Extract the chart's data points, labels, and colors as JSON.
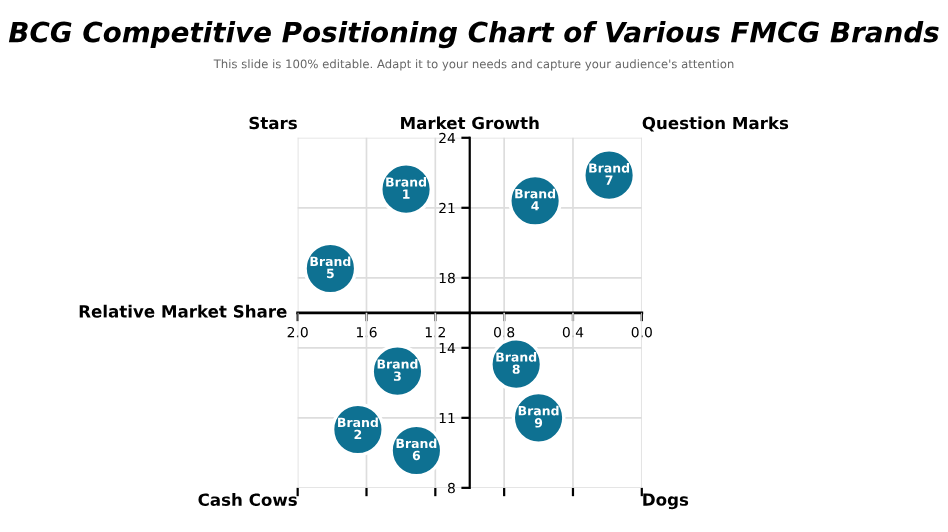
{
  "chart_data": [
    {
      "type": "scatter",
      "title": "BCG Competitive Positioning Chart of Various FMCG Brands",
      "subtitle": "This slide is 100% editable. Adapt it to your needs and capture your audience's attention",
      "xlabel": "Relative Market Share",
      "ylabel": "Market Growth",
      "x": [
        1.37,
        0.62,
        0.19,
        1.81
      ],
      "series": [
        {
          "color": "#0e7192",
          "values": [
            21.8,
            21.3,
            22.4,
            18.4
          ]
        }
      ],
      "xlim": [
        2.0,
        0.0
      ],
      "xticks": [
        {
          "value": 2,
          "label": "2.0"
        },
        1.6,
        1.2,
        0.8,
        0.4,
        {
          "value": 0,
          "label": "0.0"
        }
      ],
      "ylim": [
        16.5,
        24
      ],
      "yticks": [
        18,
        21,
        24
      ],
      "grid": true,
      "marker": "circle",
      "annotations": [
        "Stars",
        "Question Marks",
        {
          "text": "Brand\n1",
          "x": 1.37,
          "y": 21.8
        },
        {
          "text": "Brand\n4",
          "x": 0.62,
          "y": 21.3
        },
        {
          "text": "Brand\n7",
          "x": 0.19,
          "y": 22.4
        },
        {
          "text": "Brand\n5",
          "x": 1.81,
          "y": 18.4
        }
      ]
    },
    {
      "type": "scatter",
      "x": [
        1.42,
        0.73,
        1.65,
        1.31,
        0.6
      ],
      "series": [
        {
          "color": "#0e7192",
          "values": [
            13.0,
            13.3,
            10.5,
            9.6,
            11.0
          ]
        }
      ],
      "xlim": [
        2.0,
        0.0
      ],
      "ylim": [
        8,
        15.5
      ],
      "yticks": [
        8,
        11,
        14
      ],
      "grid": true,
      "marker": "circle",
      "tick_labels": "y",
      "annotations": [
        "Cash Cows",
        "Dogs",
        {
          "text": "Brand\n3",
          "x": 1.42,
          "y": 13.0
        },
        {
          "text": "Brand\n8",
          "x": 0.73,
          "y": 13.3
        },
        {
          "text": "Brand\n2",
          "x": 1.65,
          "y": 10.5
        },
        {
          "text": "Brand\n6",
          "x": 1.31,
          "y": 9.6
        },
        {
          "text": "Brand\n9",
          "x": 0.6,
          "y": 11.0
        }
      ]
    }
  ]
}
